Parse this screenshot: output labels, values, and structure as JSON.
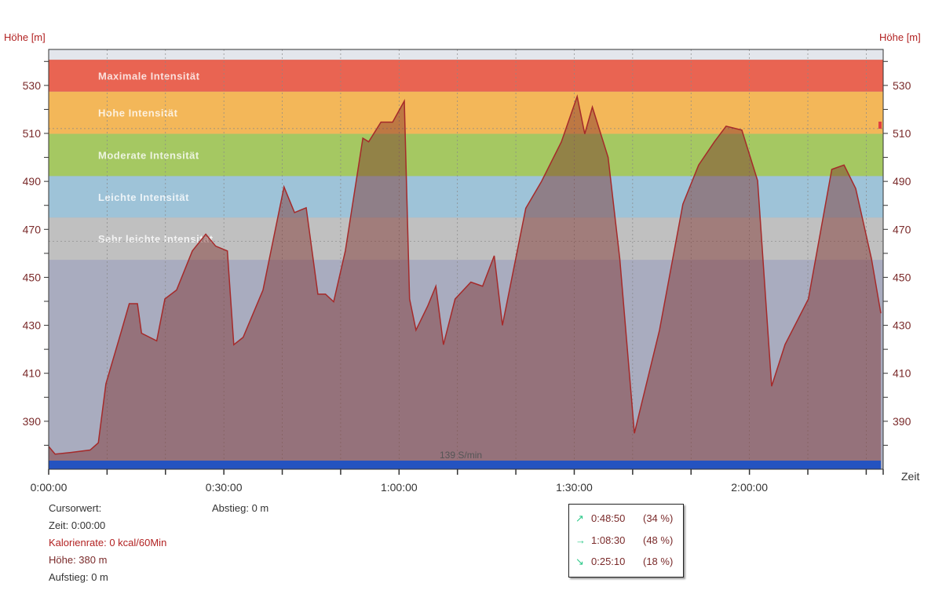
{
  "chart_data": {
    "type": "area",
    "title": "",
    "ylabel_left": "Höhe [m]",
    "ylabel_right": "Höhe [m]",
    "xlabel": "Zeit",
    "ylim": [
      370,
      545
    ],
    "xlim_minutes": [
      0,
      142.5
    ],
    "y_ticks": [
      390,
      410,
      430,
      450,
      470,
      490,
      510,
      530
    ],
    "x_ticks": [
      {
        "min": 0,
        "label": "0:00:00"
      },
      {
        "min": 30,
        "label": "0:30:00"
      },
      {
        "min": 60,
        "label": "1:00:00"
      },
      {
        "min": 90,
        "label": "1:30:00"
      },
      {
        "min": 120,
        "label": "2:00:00"
      }
    ],
    "zones": [
      {
        "name": "Maximale Intensität",
        "from": 527.4,
        "to": 540.7,
        "color": "#e96452"
      },
      {
        "name": "Hohe Intensität",
        "from": 509.8,
        "to": 527.4,
        "color": "#f3b759"
      },
      {
        "name": "Moderate Intensität",
        "from": 492.2,
        "to": 509.8,
        "color": "#a5c862"
      },
      {
        "name": "Leichte Intensität",
        "from": 474.9,
        "to": 492.2,
        "color": "#9ec3d8"
      },
      {
        "name": "Sehr leichte Intensität",
        "from": 457.3,
        "to": 474.9,
        "color": "#c0c0c0"
      }
    ],
    "series": [
      {
        "name": "Höhe",
        "color": "#a52a2a",
        "x": [
          0,
          1.1,
          3.8,
          7.1,
          8.5,
          9.8,
          12.5,
          13.8,
          15.2,
          15.9,
          18.5,
          19.9,
          21.9,
          24.6,
          26.9,
          28.6,
          30.6,
          31.7,
          33.3,
          36.7,
          40.3,
          42.1,
          44.1,
          46.1,
          47.4,
          48.8,
          50.8,
          53.8,
          54.8,
          56.9,
          58.9,
          60.9,
          61.8,
          62.9,
          64.9,
          66.3,
          67.6,
          69.6,
          72.3,
          74.3,
          76.3,
          77.7,
          81.7,
          84.4,
          87.8,
          90.5,
          91.8,
          93.1,
          95.8,
          97.8,
          100.3,
          104.6,
          108.6,
          111.3,
          114,
          116,
          118.7,
          121.4,
          123.8,
          126.1,
          130.1,
          134.1,
          136.2,
          138.2,
          140.9,
          142.5
        ],
        "y": [
          379.5,
          376.3,
          377,
          378,
          381,
          405.6,
          428,
          439,
          439,
          426.7,
          423.5,
          441,
          444.7,
          461,
          468,
          463,
          461,
          421.9,
          425,
          444.7,
          487.7,
          477,
          479,
          443,
          443,
          439.8,
          461,
          508,
          506.5,
          514.7,
          514.7,
          523.5,
          441,
          428,
          438,
          446.3,
          421.9,
          441,
          448,
          446.3,
          459,
          430,
          478.8,
          490,
          506.5,
          525.4,
          509.8,
          521,
          500,
          457.7,
          385,
          428,
          480.5,
          496.8,
          506.5,
          513,
          511.4,
          490.3,
          404.6,
          422,
          441,
          495,
          496.8,
          487,
          457.7,
          435
        ]
      }
    ],
    "bottom_bar_label": "139 S/min",
    "bottom_bar_color": "#2453c0"
  },
  "cursor": {
    "title": "Cursorwert:",
    "zeit": "Zeit: 0:00:00",
    "kalorienrate": "Kalorienrate: 0 kcal/60Min",
    "hoehe": "Höhe:  380 m",
    "aufstieg": "Aufstieg: 0 m",
    "abstieg": "Abstieg: 0 m"
  },
  "legend": [
    {
      "icon": "↗",
      "time": "0:48:50",
      "pct": "(34 %)"
    },
    {
      "icon": "→",
      "time": "1:08:30",
      "pct": "(48 %)"
    },
    {
      "icon": "↘",
      "time": "0:25:10",
      "pct": "(18 %)"
    }
  ]
}
